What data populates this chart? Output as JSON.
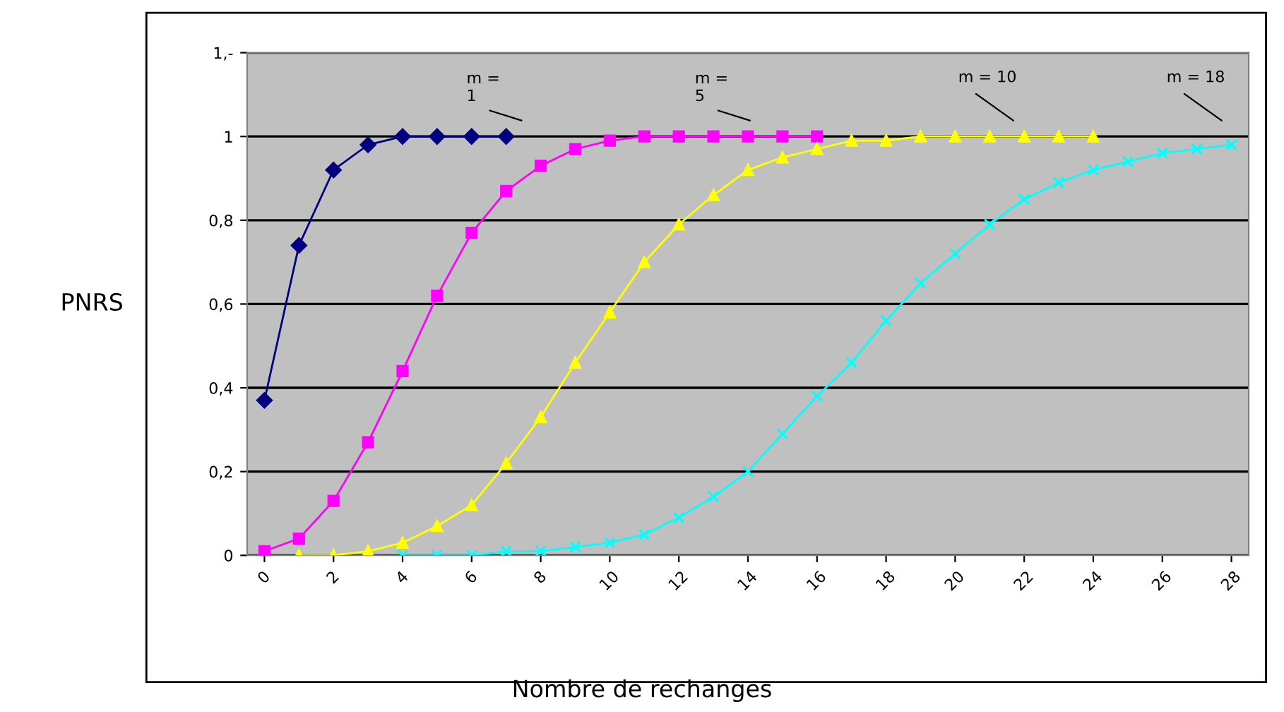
{
  "chart_data": {
    "type": "line",
    "xlabel": "Nombre de rechanges",
    "ylabel": "PNRS",
    "xlim": [
      -0.5,
      28.5
    ],
    "xticks": [
      0,
      2,
      4,
      6,
      8,
      10,
      12,
      14,
      16,
      18,
      20,
      22,
      24,
      26,
      28
    ],
    "ylim": [
      0,
      1.2
    ],
    "yticks": [
      0,
      {
        "value": 0.2,
        "label": "0,2"
      },
      {
        "value": 0.4,
        "label": "0,4"
      },
      {
        "value": 0.6,
        "label": "0,6"
      },
      {
        "value": 0.8,
        "label": "0,8"
      },
      1,
      {
        "value": 1.2,
        "label": "1,-"
      }
    ],
    "grid": "y",
    "legend": false,
    "series": [
      {
        "color": "#000080",
        "marker": "diamond",
        "x": [
          0,
          1,
          2,
          3,
          4,
          5,
          6,
          7
        ],
        "values": [
          0.37,
          0.74,
          0.92,
          0.98,
          1.0,
          1.0,
          1.0,
          1.0
        ]
      },
      {
        "color": "#ff00ff",
        "marker": "square",
        "x": [
          0,
          1,
          2,
          3,
          4,
          5,
          6,
          7,
          8,
          9,
          10,
          11,
          12,
          13,
          14,
          15,
          16
        ],
        "values": [
          0.01,
          0.04,
          0.13,
          0.27,
          0.44,
          0.62,
          0.77,
          0.87,
          0.93,
          0.97,
          0.99,
          1.0,
          1.0,
          1.0,
          1.0,
          1.0,
          1.0
        ]
      },
      {
        "color": "#ffff00",
        "marker": "triangle",
        "x": [
          1,
          2,
          3,
          4,
          5,
          6,
          7,
          8,
          9,
          10,
          11,
          12,
          13,
          14,
          15,
          16,
          17,
          18,
          19,
          20,
          21,
          22,
          23,
          24
        ],
        "values": [
          0.0,
          0.0,
          0.01,
          0.03,
          0.07,
          0.12,
          0.22,
          0.33,
          0.46,
          0.58,
          0.7,
          0.79,
          0.86,
          0.92,
          0.95,
          0.97,
          0.99,
          0.99,
          1.0,
          1.0,
          1.0,
          1.0,
          1.0,
          1.0
        ]
      },
      {
        "color": "#00ffff",
        "marker": "cross",
        "x": [
          4,
          5,
          6,
          7,
          8,
          9,
          10,
          11,
          12,
          13,
          14,
          15,
          16,
          17,
          18,
          19,
          20,
          21,
          22,
          23,
          24,
          25,
          26,
          27,
          28
        ],
        "values": [
          0.0,
          0.0,
          0.0,
          0.01,
          0.01,
          0.02,
          0.03,
          0.05,
          0.09,
          0.14,
          0.2,
          0.29,
          0.38,
          0.46,
          0.56,
          0.65,
          0.72,
          0.79,
          0.85,
          0.89,
          0.92,
          0.94,
          0.96,
          0.97,
          0.98
        ]
      }
    ],
    "annotations": [
      "m =\n1",
      "m =\n5",
      "m = 10",
      "m = 18"
    ]
  }
}
